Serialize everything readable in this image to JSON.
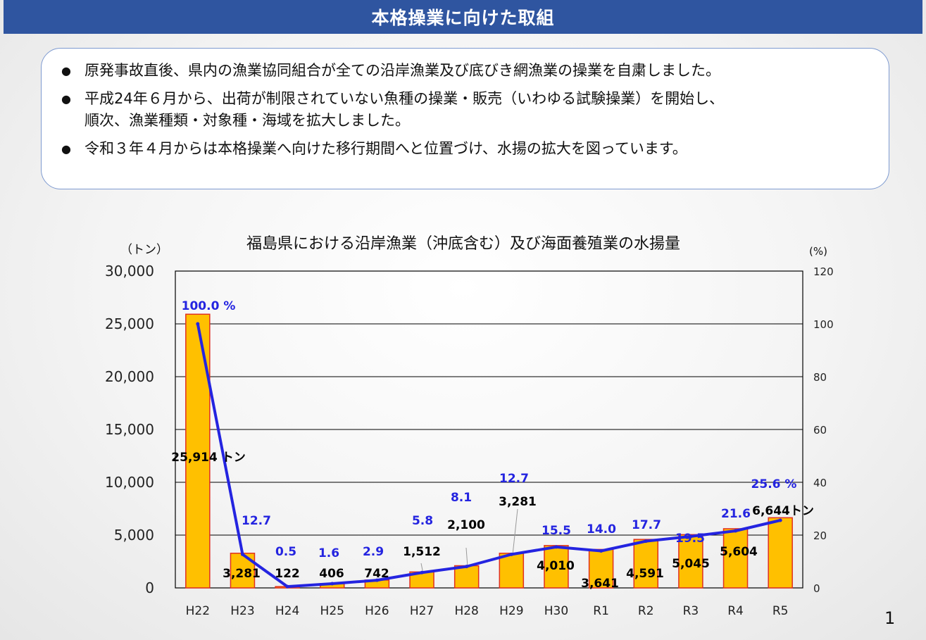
{
  "header": {
    "title": "本格操業に向けた取組"
  },
  "bullets": [
    "原発事故直後、県内の漁業協同組合が全ての沿岸漁業及び底びき網漁業の操業を自粛しました。",
    "平成24年６月から、出荷が制限されていない魚種の操業・販売（いわゆる試験操業）を開始し、\n順次、漁業種類・対象種・海域を拡大しました。",
    "令和３年４月からは本格操業へ向けた移行期間へと位置づけ、水揚の拡大を図っています。"
  ],
  "bullet_symbol": "●",
  "page_number": "1",
  "chart_data": {
    "type": "bar",
    "title": "福島県における沿岸漁業（沖底含む）及び海面養殖業の水揚量",
    "y_unit_label": "（トン）",
    "y2_unit_label": "(%)",
    "categories": [
      "H22",
      "H23",
      "H24",
      "H25",
      "H26",
      "H27",
      "H28",
      "H29",
      "H30",
      "R1",
      "R2",
      "R3",
      "R4",
      "R5"
    ],
    "series": [
      {
        "type": "bar",
        "axis": "left",
        "values": [
          25914,
          3281,
          122,
          406,
          742,
          1512,
          2100,
          3281,
          4010,
          3641,
          4591,
          5045,
          5604,
          6644
        ],
        "labels": [
          "25,914 トン",
          "3,281",
          "122",
          "406",
          "742",
          "1,512",
          "2,100",
          "3,281",
          "4,010",
          "3,641",
          "4,591",
          "5,045",
          "5,604",
          "6,644トン"
        ],
        "color": "#ffc000",
        "edge": "#e03020"
      },
      {
        "type": "line",
        "axis": "right",
        "values": [
          100.0,
          12.7,
          0.5,
          1.6,
          2.9,
          5.8,
          8.1,
          12.7,
          15.5,
          14.0,
          17.7,
          19.5,
          21.6,
          25.6
        ],
        "labels": [
          "100.0 %",
          "12.7",
          "0.5",
          "1.6",
          "2.9",
          "5.8",
          "8.1",
          "12.7",
          "15.5",
          "14.0",
          "17.7",
          "19.5",
          "21.6",
          "25.6 %"
        ],
        "color": "#2424e0"
      }
    ],
    "ylim": [
      0,
      30000
    ],
    "y_ticks": [
      "0",
      "5,000",
      "10,000",
      "15,000",
      "20,000",
      "25,000",
      "30,000"
    ],
    "y2lim": [
      0,
      120
    ],
    "y2_ticks": [
      "0",
      "20",
      "40",
      "60",
      "80",
      "100",
      "120"
    ],
    "grid": true
  }
}
